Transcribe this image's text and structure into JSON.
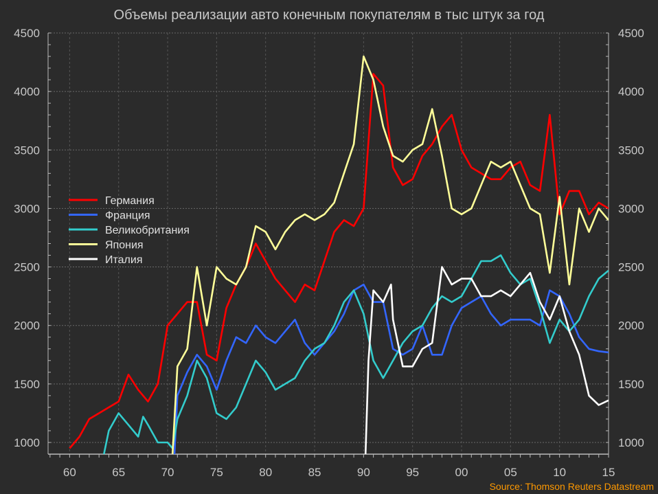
{
  "chart_data": {
    "type": "line",
    "title": "Объемы реализации авто конечным покупателям в тыс штук за год",
    "source": "Source: Thomson Reuters Datastream",
    "xlabel": "",
    "ylabel": "",
    "xlim": [
      1957.8,
      2015
    ],
    "ylim": [
      900,
      4500
    ],
    "grid": true,
    "legend_position": "left-middle",
    "x_ticks": [
      1960,
      1965,
      1970,
      1975,
      1980,
      1985,
      1990,
      1995,
      2000,
      2005,
      2010,
      2015
    ],
    "x_tick_labels": [
      "60",
      "65",
      "70",
      "75",
      "80",
      "85",
      "90",
      "95",
      "00",
      "05",
      "10",
      "15"
    ],
    "y_ticks": [
      1000,
      1500,
      2000,
      2500,
      3000,
      3500,
      4000,
      4500
    ],
    "y_tick_labels": [
      "1000",
      "1500",
      "2000",
      "2500",
      "3000",
      "3500",
      "4000",
      "4500"
    ],
    "series": [
      {
        "name": "Германия",
        "color": "#ff0000",
        "x": [
          1960,
          1961,
          1962,
          1963,
          1964,
          1965,
          1966,
          1967,
          1968,
          1969,
          1970,
          1971,
          1972,
          1973,
          1974,
          1975,
          1976,
          1977,
          1978,
          1979,
          1980,
          1981,
          1982,
          1983,
          1984,
          1985,
          1986,
          1987,
          1988,
          1989,
          1990,
          1991,
          1992,
          1993,
          1994,
          1995,
          1996,
          1997,
          1998,
          1999,
          2000,
          2001,
          2002,
          2003,
          2004,
          2005,
          2006,
          2007,
          2008,
          2009,
          2010,
          2011,
          2012,
          2013,
          2014,
          2015
        ],
        "y": [
          950,
          1050,
          1200,
          1250,
          1300,
          1350,
          1580,
          1450,
          1350,
          1500,
          2000,
          2100,
          2200,
          2200,
          1750,
          1700,
          2150,
          2350,
          2500,
          2700,
          2550,
          2400,
          2300,
          2200,
          2350,
          2300,
          2550,
          2800,
          2900,
          2850,
          3000,
          4150,
          4050,
          3350,
          3200,
          3250,
          3450,
          3550,
          3700,
          3800,
          3500,
          3350,
          3300,
          3250,
          3250,
          3350,
          3400,
          3200,
          3150,
          3800,
          2950,
          3150,
          3150,
          2950,
          3050,
          3000
        ]
      },
      {
        "name": "Франция",
        "color": "#3366ff",
        "x": [
          1970.7,
          1971,
          1972,
          1973,
          1974,
          1975,
          1976,
          1977,
          1978,
          1979,
          1980,
          1981,
          1982,
          1983,
          1984,
          1985,
          1986,
          1987,
          1988,
          1989,
          1990,
          1991,
          1992,
          1993,
          1994,
          1995,
          1996,
          1997,
          1998,
          1999,
          2000,
          2001,
          2002,
          2003,
          2004,
          2005,
          2006,
          2007,
          2008,
          2009,
          2010,
          2011,
          2012,
          2013,
          2014,
          2015
        ],
        "y": [
          900,
          1400,
          1600,
          1750,
          1650,
          1450,
          1700,
          1900,
          1850,
          2000,
          1900,
          1850,
          1950,
          2050,
          1850,
          1750,
          1850,
          1950,
          2100,
          2300,
          2350,
          2200,
          2200,
          1800,
          1750,
          1800,
          2000,
          1750,
          1750,
          2000,
          2150,
          2200,
          2250,
          2100,
          2000,
          2050,
          2050,
          2050,
          2000,
          2300,
          2250,
          2100,
          1900,
          1800,
          1780,
          1770
        ]
      },
      {
        "name": "Великобритания",
        "color": "#33cccc",
        "x": [
          1963.5,
          1964,
          1965,
          1966,
          1967,
          1967.5,
          1968,
          1969,
          1970,
          1970.5,
          1971,
          1972,
          1973,
          1974,
          1975,
          1976,
          1977,
          1978,
          1979,
          1980,
          1981,
          1982,
          1983,
          1984,
          1985,
          1986,
          1987,
          1988,
          1989,
          1990,
          1991,
          1992,
          1993,
          1994,
          1995,
          1996,
          1997,
          1998,
          1999,
          2000,
          2001,
          2002,
          2003,
          2004,
          2005,
          2006,
          2007,
          2008,
          2009,
          2010,
          2011,
          2012,
          2013,
          2014,
          2015
        ],
        "y": [
          900,
          1100,
          1250,
          1150,
          1050,
          1220,
          1150,
          1000,
          1000,
          950,
          1200,
          1400,
          1700,
          1550,
          1250,
          1200,
          1300,
          1500,
          1700,
          1600,
          1450,
          1500,
          1550,
          1700,
          1800,
          1850,
          2000,
          2200,
          2300,
          2100,
          1700,
          1550,
          1700,
          1850,
          1950,
          2000,
          2150,
          2250,
          2200,
          2250,
          2400,
          2550,
          2550,
          2600,
          2450,
          2350,
          2400,
          2150,
          1850,
          2050,
          1950,
          2050,
          2250,
          2400,
          2470
        ]
      },
      {
        "name": "Япония",
        "color": "#ffff99",
        "x": [
          1970.5,
          1971,
          1972,
          1973,
          1974,
          1975,
          1976,
          1977,
          1978,
          1979,
          1980,
          1981,
          1982,
          1983,
          1984,
          1985,
          1986,
          1987,
          1988,
          1989,
          1990,
          1991,
          1992,
          1993,
          1994,
          1995,
          1996,
          1997,
          1998,
          1999,
          2000,
          2001,
          2002,
          2003,
          2004,
          2005,
          2006,
          2007,
          2008,
          2009,
          2010,
          2011,
          2012,
          2013,
          2014,
          2015
        ],
        "y": [
          900,
          1650,
          1800,
          2500,
          2000,
          2500,
          2400,
          2350,
          2500,
          2850,
          2800,
          2650,
          2800,
          2900,
          2950,
          2900,
          2950,
          3050,
          3300,
          3550,
          4300,
          4100,
          3700,
          3450,
          3400,
          3500,
          3550,
          3850,
          3450,
          3000,
          2950,
          3000,
          3200,
          3400,
          3350,
          3400,
          3200,
          3000,
          2950,
          2450,
          3100,
          2350,
          3000,
          2800,
          3000,
          2900
        ]
      },
      {
        "name": "Италия",
        "color": "#ffffff",
        "x": [
          1990.2,
          1990.5,
          1991,
          1992,
          1992.8,
          1993,
          1994,
          1995,
          1996,
          1997,
          1998,
          1999,
          2000,
          2001,
          2002,
          2003,
          2004,
          2005,
          2006,
          2007,
          2008,
          2009,
          2010,
          2011,
          2012,
          2013,
          2014,
          2015
        ],
        "y": [
          900,
          1700,
          2300,
          2200,
          2350,
          2050,
          1650,
          1650,
          1800,
          1850,
          2500,
          2350,
          2400,
          2400,
          2250,
          2250,
          2300,
          2250,
          2350,
          2450,
          2200,
          2050,
          2250,
          1950,
          1750,
          1400,
          1320,
          1360
        ]
      }
    ]
  }
}
